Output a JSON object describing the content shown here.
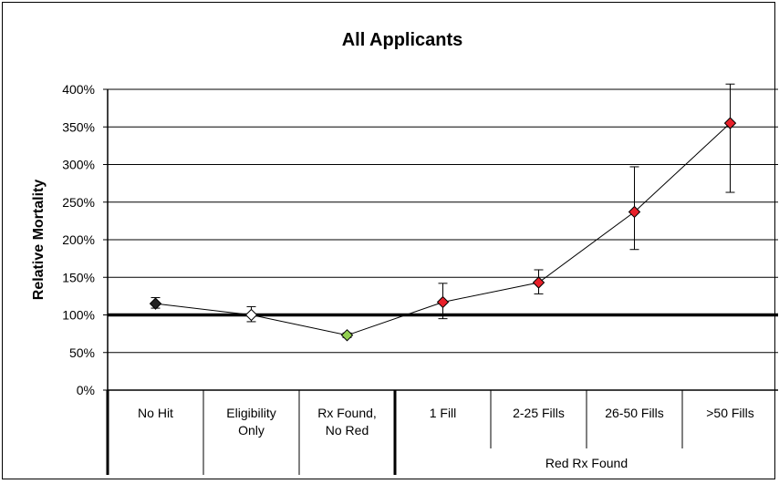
{
  "chart_data": {
    "type": "line",
    "title": "All Applicants",
    "xlabel": "",
    "ylabel": "Relative Mortality",
    "ylim": [
      0,
      400
    ],
    "y_ticks": [
      "0%",
      "50%",
      "100%",
      "150%",
      "200%",
      "250%",
      "300%",
      "350%",
      "400%"
    ],
    "y_tick_values": [
      0,
      50,
      100,
      150,
      200,
      250,
      300,
      350,
      400
    ],
    "reference_line": 100,
    "grid": true,
    "categories": [
      [
        "No Hit"
      ],
      [
        "Eligibility",
        "Only"
      ],
      [
        "Rx Found,",
        "No Red"
      ],
      [
        "1 Fill"
      ],
      [
        "2-25 Fills"
      ],
      [
        "26-50 Fills"
      ],
      [
        ">50 Fills"
      ]
    ],
    "group_label": "Red Rx Found",
    "group_members": [
      3,
      4,
      5,
      6
    ],
    "series": [
      {
        "values": [
          115,
          100,
          73,
          117,
          143,
          237,
          355
        ],
        "error_low": [
          109,
          91,
          70,
          95,
          128,
          187,
          263
        ],
        "error_high": [
          123,
          111,
          76,
          142,
          160,
          297,
          407
        ],
        "marker_colors": [
          "#222222",
          "#ffffff",
          "#92d050",
          "#e8202a",
          "#e8202a",
          "#e8202a",
          "#e8202a"
        ]
      }
    ]
  }
}
